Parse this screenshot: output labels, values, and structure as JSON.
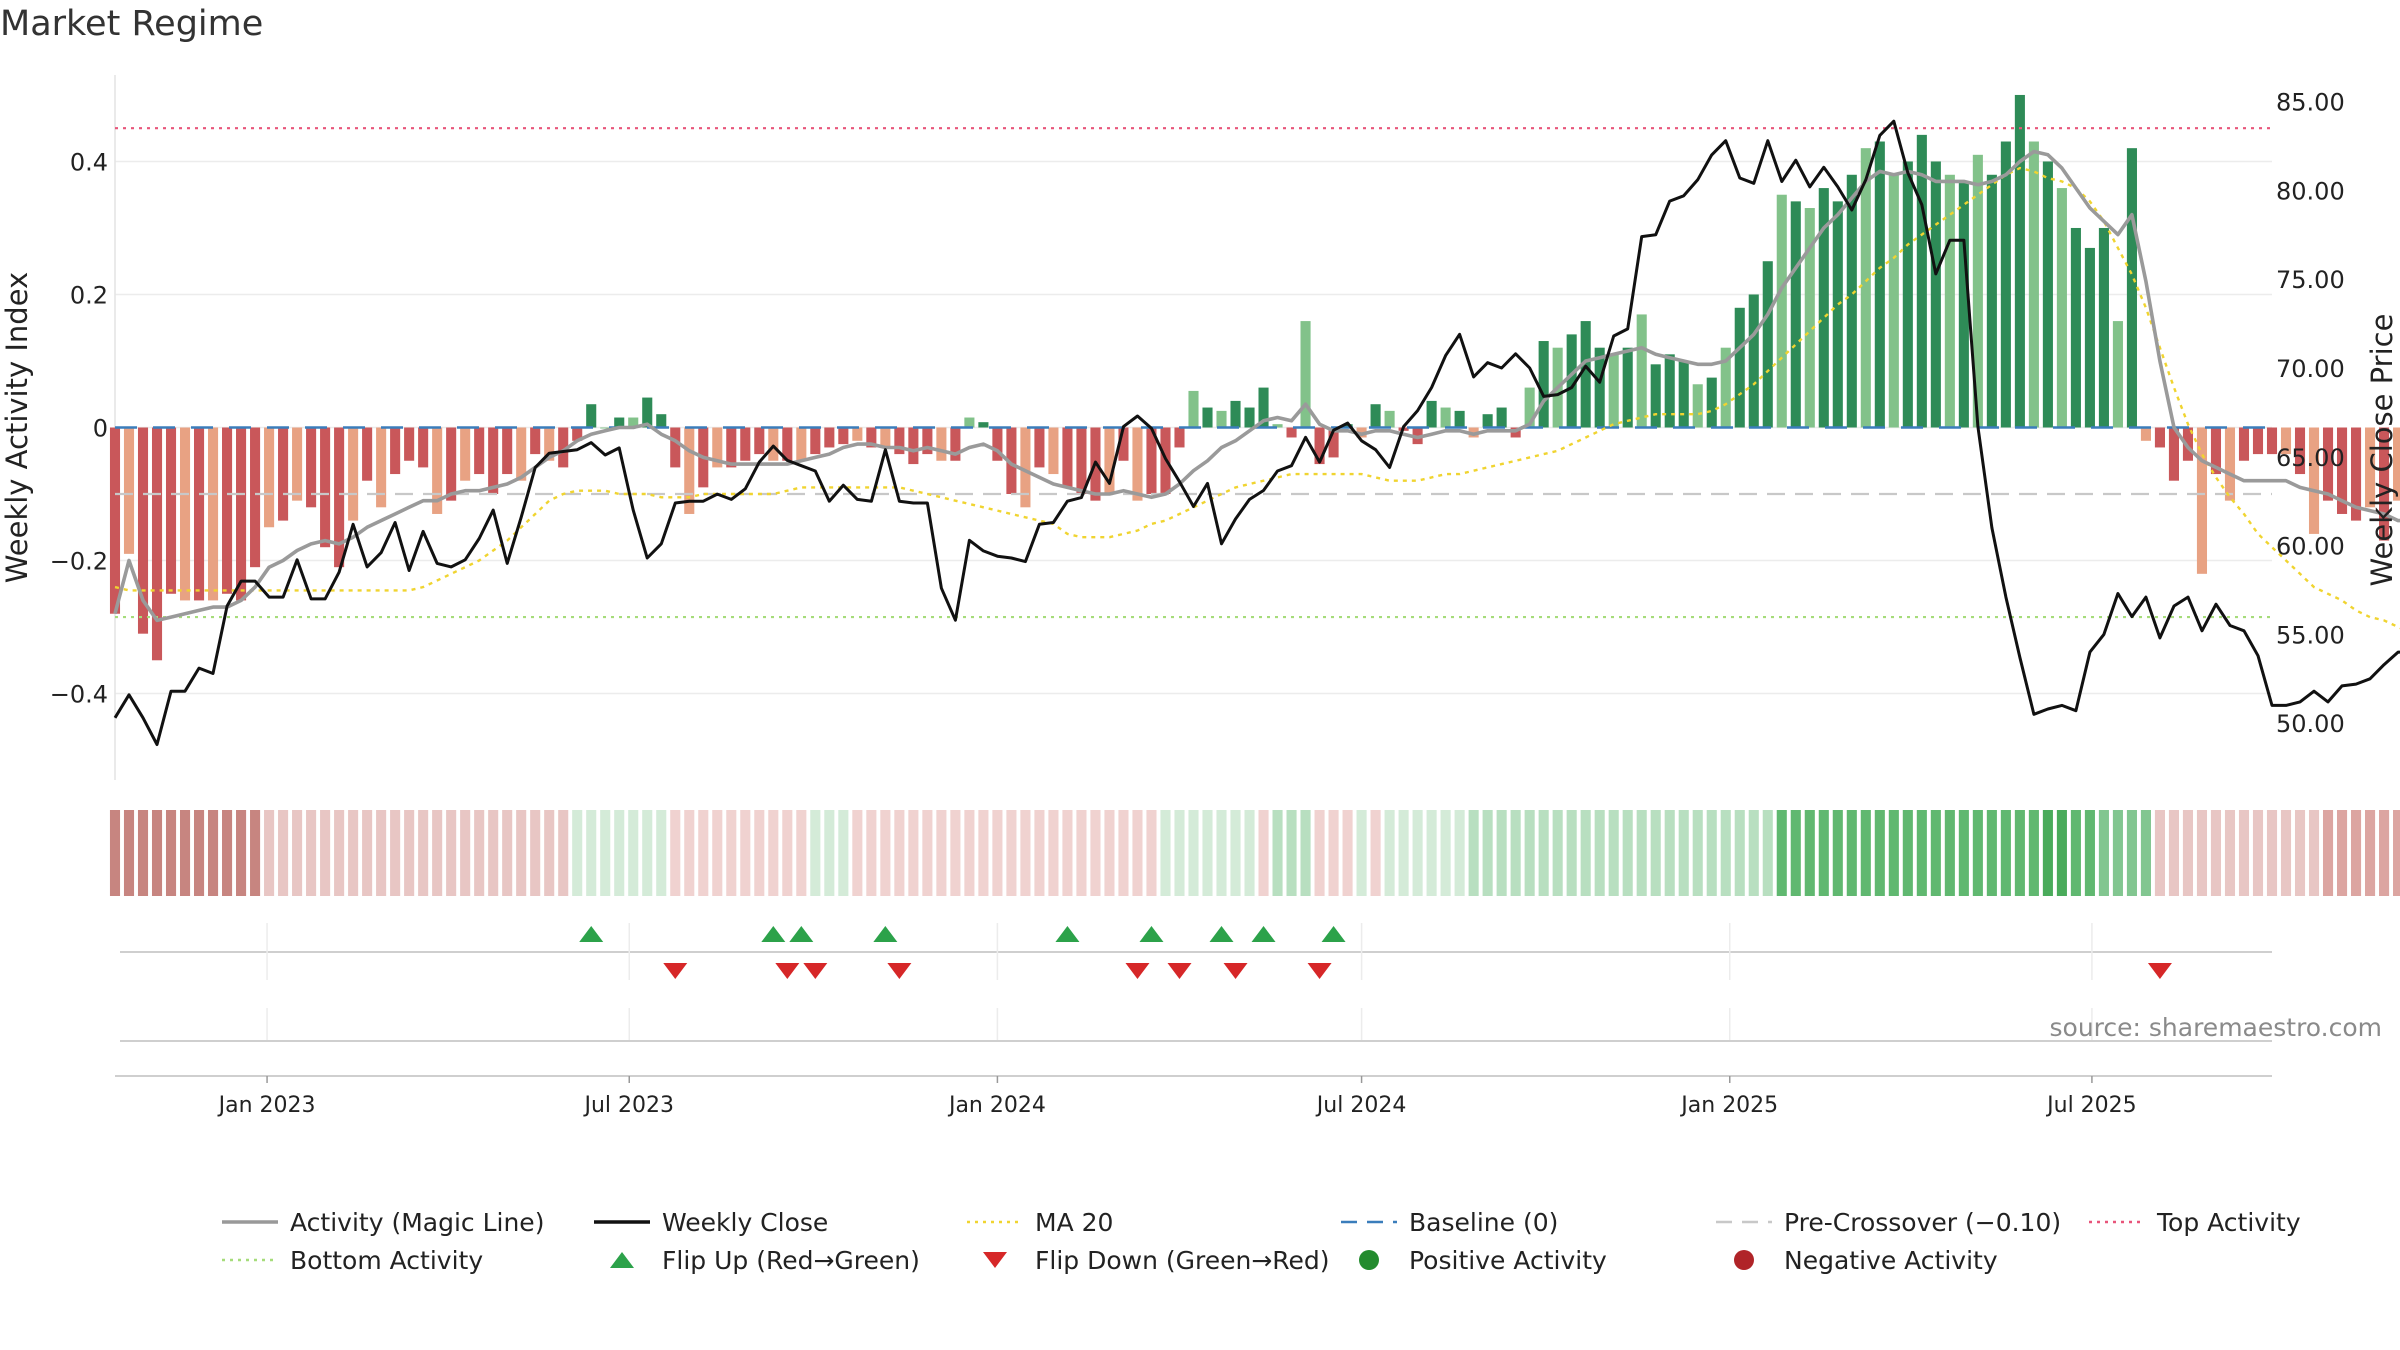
{
  "page": {
    "title": "Market Regime",
    "source": "source: sharemaestro.com"
  },
  "legend": [
    {
      "key": "magic",
      "label": "Activity (Magic Line)",
      "color": "#999999",
      "kind": "line"
    },
    {
      "key": "close",
      "label": "Weekly Close",
      "color": "#111111",
      "kind": "line"
    },
    {
      "key": "ma20",
      "label": "MA 20",
      "color": "#f0d430",
      "kind": "dotted"
    },
    {
      "key": "baseline",
      "label": "Baseline (0)",
      "color": "#3a7dbb",
      "kind": "dashed"
    },
    {
      "key": "precross",
      "label": "Pre-Crossover (−0.10)",
      "color": "#c8c8c8",
      "kind": "dashed"
    },
    {
      "key": "top",
      "label": "Top Activity",
      "color": "#e8557a",
      "kind": "dotted"
    },
    {
      "key": "bottom",
      "label": "Bottom Activity",
      "color": "#a6dc7a",
      "kind": "dotted"
    },
    {
      "key": "flipup",
      "label": "Flip Up (Red→Green)",
      "color": "#2ca24a",
      "kind": "triangle-up"
    },
    {
      "key": "flipdown",
      "label": "Flip Down (Green→Red)",
      "color": "#d62728",
      "kind": "triangle-down"
    },
    {
      "key": "pos",
      "label": "Positive Activity",
      "color": "#238b2e",
      "kind": "circle"
    },
    {
      "key": "neg",
      "label": "Negative Activity",
      "color": "#b02428",
      "kind": "circle"
    }
  ],
  "chart_data": {
    "type": "bar",
    "title": "Market Regime",
    "ylabel_left": "Weekly Activity Index",
    "ylabel_right": "Weekly Close Price",
    "ylim_left": [
      -0.53,
      0.53
    ],
    "ylim_right": [
      46.8,
      86.5
    ],
    "left_ticks": [
      {
        "v": 0.4,
        "label": "0.4"
      },
      {
        "v": 0.2,
        "label": "0.2"
      },
      {
        "v": 0,
        "label": "0"
      },
      {
        "v": -0.2,
        "label": "−0.2"
      },
      {
        "v": -0.4,
        "label": "−0.4"
      }
    ],
    "right_ticks": [
      {
        "v": 85,
        "label": "85.00"
      },
      {
        "v": 80,
        "label": "80.00"
      },
      {
        "v": 75,
        "label": "75.00"
      },
      {
        "v": 70,
        "label": "70.00"
      },
      {
        "v": 65,
        "label": "65.00"
      },
      {
        "v": 60,
        "label": "60.00"
      },
      {
        "v": 55,
        "label": "55.00"
      },
      {
        "v": 50,
        "label": "50.00"
      }
    ],
    "x_range": [
      "2022-10-17",
      "2025-09-29"
    ],
    "x_ticks": [
      {
        "date": "2023-01-01",
        "label": "Jan 2023"
      },
      {
        "date": "2023-07-01",
        "label": "Jul 2023"
      },
      {
        "date": "2024-01-01",
        "label": "Jan 2024"
      },
      {
        "date": "2024-07-01",
        "label": "Jul 2024"
      },
      {
        "date": "2025-01-01",
        "label": "Jan 2025"
      },
      {
        "date": "2025-07-01",
        "label": "Jul 2025"
      }
    ],
    "first_week": "2022-10-17",
    "baseline": 0,
    "pre_crossover": -0.1,
    "top_activity": 0.45,
    "bottom_activity": -0.285,
    "activity": [
      -0.28,
      -0.19,
      -0.31,
      -0.35,
      -0.25,
      -0.26,
      -0.26,
      -0.26,
      -0.25,
      -0.26,
      -0.21,
      -0.15,
      -0.14,
      -0.11,
      -0.12,
      -0.18,
      -0.21,
      -0.14,
      -0.08,
      -0.12,
      -0.07,
      -0.05,
      -0.06,
      -0.13,
      -0.11,
      -0.08,
      -0.07,
      -0.1,
      -0.07,
      -0.08,
      -0.04,
      -0.05,
      -0.06,
      -0.02,
      0.035,
      0.0,
      0.015,
      0.015,
      0.045,
      0.02,
      -0.06,
      -0.13,
      -0.09,
      -0.06,
      -0.06,
      -0.05,
      -0.04,
      -0.05,
      -0.05,
      -0.05,
      -0.04,
      -0.03,
      -0.025,
      -0.02,
      -0.03,
      -0.03,
      -0.04,
      -0.055,
      -0.04,
      -0.05,
      -0.05,
      0.015,
      0.008,
      -0.05,
      -0.1,
      -0.12,
      -0.06,
      -0.07,
      -0.09,
      -0.1,
      -0.11,
      -0.1,
      -0.05,
      -0.11,
      -0.1,
      -0.1,
      -0.03,
      0.055,
      0.03,
      0.025,
      0.04,
      0.03,
      0.06,
      0.005,
      -0.015,
      0.16,
      -0.055,
      -0.045,
      0.005,
      -0.015,
      0.035,
      0.025,
      -0.005,
      -0.025,
      0.04,
      0.03,
      0.025,
      -0.015,
      0.02,
      0.03,
      -0.015,
      0.06,
      0.13,
      0.12,
      0.14,
      0.16,
      0.12,
      0.11,
      0.12,
      0.17,
      0.095,
      0.11,
      0.1,
      0.065,
      0.075,
      0.12,
      0.18,
      0.2,
      0.25,
      0.35,
      0.34,
      0.33,
      0.36,
      0.34,
      0.38,
      0.42,
      0.43,
      0.38,
      0.4,
      0.44,
      0.4,
      0.38,
      0.37,
      0.41,
      0.38,
      0.43,
      0.5,
      0.43,
      0.4,
      0.36,
      0.3,
      0.27,
      0.3,
      0.16,
      0.42,
      -0.02,
      -0.03,
      -0.08,
      -0.05,
      -0.22,
      -0.07,
      -0.11,
      -0.05,
      -0.04,
      -0.04,
      -0.04,
      -0.07,
      -0.16,
      -0.11,
      -0.13,
      -0.14,
      -0.12,
      -0.17,
      -0.11,
      -0.15,
      -0.16,
      -0.17,
      -0.2,
      -0.2,
      -0.2,
      -0.12,
      -0.2,
      -0.23,
      -0.16,
      -0.19,
      -0.18,
      -0.28,
      -0.24,
      -0.2,
      -0.24,
      -0.18,
      -0.28,
      -0.3,
      -0.22
    ],
    "weekly_close": [
      50.3,
      51.6,
      50.3,
      48.8,
      51.8,
      51.8,
      53.1,
      52.8,
      56.6,
      58.0,
      58.0,
      57.1,
      57.1,
      59.2,
      57.0,
      57.0,
      58.5,
      61.2,
      58.8,
      59.6,
      61.3,
      58.6,
      60.8,
      59.0,
      58.8,
      59.2,
      60.4,
      62.0,
      59.0,
      61.6,
      64.4,
      65.2,
      65.3,
      65.4,
      65.8,
      65.1,
      65.5,
      62.0,
      59.3,
      60.1,
      62.4,
      62.5,
      62.5,
      62.9,
      62.6,
      63.2,
      64.7,
      65.6,
      64.8,
      64.5,
      64.2,
      62.5,
      63.4,
      62.6,
      62.5,
      65.4,
      62.5,
      62.4,
      62.4,
      57.6,
      55.8,
      60.3,
      59.7,
      59.4,
      59.3,
      59.1,
      61.2,
      61.3,
      62.5,
      62.7,
      64.7,
      63.5,
      66.7,
      67.3,
      66.6,
      64.9,
      63.6,
      62.2,
      63.5,
      60.1,
      61.5,
      62.6,
      63.1,
      64.2,
      64.5,
      66.1,
      64.7,
      66.5,
      66.9,
      65.9,
      65.4,
      64.4,
      66.7,
      67.6,
      68.9,
      70.7,
      71.9,
      69.5,
      70.3,
      70.0,
      70.8,
      70.0,
      68.4,
      68.5,
      68.9,
      70.1,
      69.2,
      71.8,
      72.2,
      77.4,
      77.5,
      79.4,
      79.7,
      80.6,
      82.0,
      82.8,
      80.7,
      80.4,
      82.8,
      80.5,
      81.7,
      80.2,
      81.3,
      80.2,
      78.9,
      80.6,
      83.1,
      83.9,
      81.0,
      79.2,
      75.3,
      77.2,
      77.2,
      66.7,
      61.0,
      57.1,
      53.7,
      50.5,
      50.8,
      51.0,
      50.7,
      54.0,
      55.0,
      57.3,
      56.0,
      57.1,
      54.8,
      56.6,
      57.1,
      55.2,
      56.7,
      55.5,
      55.2,
      53.8,
      51.0,
      51.0,
      51.2,
      51.8,
      51.2,
      52.1,
      52.2,
      52.5,
      53.3,
      54.0,
      54.0,
      55.2,
      55.0,
      56.2,
      55.2,
      56.5,
      55.5
    ],
    "magic_line": [
      -0.28,
      -0.2,
      -0.26,
      -0.29,
      -0.285,
      -0.28,
      -0.275,
      -0.27,
      -0.27,
      -0.26,
      -0.24,
      -0.21,
      -0.2,
      -0.185,
      -0.175,
      -0.17,
      -0.175,
      -0.165,
      -0.15,
      -0.14,
      -0.13,
      -0.12,
      -0.11,
      -0.11,
      -0.1,
      -0.095,
      -0.095,
      -0.09,
      -0.085,
      -0.075,
      -0.06,
      -0.045,
      -0.035,
      -0.02,
      -0.01,
      -0.005,
      0.0,
      0.0,
      0.005,
      -0.01,
      -0.02,
      -0.035,
      -0.045,
      -0.05,
      -0.055,
      -0.055,
      -0.055,
      -0.055,
      -0.055,
      -0.05,
      -0.045,
      -0.04,
      -0.03,
      -0.025,
      -0.025,
      -0.03,
      -0.03,
      -0.035,
      -0.03,
      -0.035,
      -0.04,
      -0.03,
      -0.025,
      -0.035,
      -0.055,
      -0.065,
      -0.075,
      -0.085,
      -0.09,
      -0.095,
      -0.1,
      -0.1,
      -0.095,
      -0.1,
      -0.105,
      -0.1,
      -0.085,
      -0.065,
      -0.05,
      -0.03,
      -0.02,
      -0.005,
      0.01,
      0.015,
      0.01,
      0.035,
      0.005,
      -0.005,
      -0.005,
      -0.01,
      -0.005,
      -0.005,
      -0.01,
      -0.015,
      -0.01,
      -0.005,
      -0.005,
      -0.01,
      -0.005,
      -0.005,
      -0.005,
      0.005,
      0.04,
      0.06,
      0.08,
      0.1,
      0.105,
      0.11,
      0.115,
      0.12,
      0.11,
      0.105,
      0.1,
      0.095,
      0.095,
      0.1,
      0.12,
      0.14,
      0.17,
      0.21,
      0.24,
      0.27,
      0.3,
      0.32,
      0.345,
      0.37,
      0.385,
      0.38,
      0.385,
      0.38,
      0.37,
      0.37,
      0.37,
      0.365,
      0.37,
      0.38,
      0.4,
      0.415,
      0.41,
      0.39,
      0.36,
      0.33,
      0.31,
      0.29,
      0.32,
      0.22,
      0.1,
      0.0,
      -0.03,
      -0.05,
      -0.06,
      -0.07,
      -0.08,
      -0.08,
      -0.08,
      -0.08,
      -0.09,
      -0.095,
      -0.1,
      -0.11,
      -0.12,
      -0.125,
      -0.13,
      -0.14,
      -0.14,
      -0.145,
      -0.15,
      -0.155,
      -0.16,
      -0.165,
      -0.17,
      -0.175,
      -0.18,
      -0.185,
      -0.19,
      -0.195,
      -0.2,
      -0.205,
      -0.215,
      -0.22,
      -0.225,
      -0.23,
      -0.235,
      -0.23
    ],
    "ma20": [
      -0.24,
      -0.245,
      -0.245,
      -0.245,
      -0.245,
      -0.245,
      -0.245,
      -0.245,
      -0.245,
      -0.245,
      -0.245,
      -0.245,
      -0.245,
      -0.245,
      -0.245,
      -0.245,
      -0.245,
      -0.245,
      -0.245,
      -0.245,
      -0.245,
      -0.245,
      -0.24,
      -0.23,
      -0.22,
      -0.21,
      -0.2,
      -0.185,
      -0.17,
      -0.15,
      -0.13,
      -0.11,
      -0.1,
      -0.095,
      -0.095,
      -0.095,
      -0.1,
      -0.1,
      -0.1,
      -0.105,
      -0.105,
      -0.105,
      -0.1,
      -0.1,
      -0.1,
      -0.1,
      -0.1,
      -0.1,
      -0.095,
      -0.09,
      -0.09,
      -0.09,
      -0.09,
      -0.09,
      -0.09,
      -0.09,
      -0.09,
      -0.095,
      -0.1,
      -0.105,
      -0.11,
      -0.115,
      -0.12,
      -0.125,
      -0.13,
      -0.135,
      -0.14,
      -0.145,
      -0.16,
      -0.165,
      -0.165,
      -0.165,
      -0.16,
      -0.155,
      -0.145,
      -0.14,
      -0.13,
      -0.12,
      -0.11,
      -0.1,
      -0.09,
      -0.085,
      -0.08,
      -0.075,
      -0.07,
      -0.07,
      -0.07,
      -0.07,
      -0.07,
      -0.07,
      -0.075,
      -0.08,
      -0.08,
      -0.08,
      -0.075,
      -0.07,
      -0.07,
      -0.065,
      -0.06,
      -0.055,
      -0.05,
      -0.045,
      -0.04,
      -0.035,
      -0.025,
      -0.015,
      -0.005,
      0.005,
      0.01,
      0.015,
      0.02,
      0.02,
      0.02,
      0.02,
      0.025,
      0.035,
      0.05,
      0.065,
      0.085,
      0.105,
      0.125,
      0.145,
      0.165,
      0.185,
      0.2,
      0.22,
      0.24,
      0.255,
      0.275,
      0.29,
      0.305,
      0.32,
      0.335,
      0.35,
      0.365,
      0.38,
      0.39,
      0.385,
      0.375,
      0.37,
      0.36,
      0.34,
      0.31,
      0.27,
      0.23,
      0.18,
      0.12,
      0.06,
      0.005,
      -0.04,
      -0.075,
      -0.105,
      -0.13,
      -0.16,
      -0.18,
      -0.2,
      -0.22,
      -0.24,
      -0.25,
      -0.26,
      -0.275,
      -0.285,
      -0.29,
      -0.3,
      -0.31,
      -0.32,
      -0.33,
      -0.335,
      -0.34,
      -0.345,
      -0.345,
      -0.34,
      -0.335,
      -0.33,
      -0.32,
      -0.31,
      -0.3
    ],
    "regime_colors": [
      "#c78580",
      "#c78580",
      "#c78580",
      "#c78580",
      "#c78580",
      "#c78580",
      "#c78580",
      "#c78580",
      "#c78580",
      "#c78580",
      "#c78580",
      "#e8c6c4",
      "#e8c6c4",
      "#e8c6c4",
      "#e8c6c4",
      "#e8c6c4",
      "#e8c6c4",
      "#e8c6c4",
      "#e8c6c4",
      "#e8c6c4",
      "#e8c6c4",
      "#e8c6c4",
      "#e8c6c4",
      "#e8c6c4",
      "#e8c6c4",
      "#e8c6c4",
      "#e8c6c4",
      "#e8c6c4",
      "#e8c6c4",
      "#e8c6c4",
      "#e8c6c4",
      "#e8c6c4",
      "#e8c6c4",
      "#d4ebd8",
      "#d4ebd8",
      "#d4ebd8",
      "#d4ebd8",
      "#d4ebd8",
      "#d4ebd8",
      "#d4ebd8",
      "#f0d2d0",
      "#f0d2d0",
      "#f0d2d0",
      "#f0d2d0",
      "#f0d2d0",
      "#f0d2d0",
      "#f0d2d0",
      "#f0d2d0",
      "#f0d2d0",
      "#f0d2d0",
      "#d4ebd8",
      "#d4ebd8",
      "#d4ebd8",
      "#f0d2d0",
      "#f0d2d0",
      "#f0d2d0",
      "#f0d2d0",
      "#f0d2d0",
      "#f0d2d0",
      "#f0d2d0",
      "#f0d2d0",
      "#f0d2d0",
      "#f0d2d0",
      "#f0d2d0",
      "#f0d2d0",
      "#f0d2d0",
      "#f0d2d0",
      "#f0d2d0",
      "#f0d2d0",
      "#f0d2d0",
      "#f0d2d0",
      "#f0d2d0",
      "#f0d2d0",
      "#f0d2d0",
      "#f0d2d0",
      "#d4ebd8",
      "#d4ebd8",
      "#d4ebd8",
      "#d4ebd8",
      "#d4ebd8",
      "#d4ebd8",
      "#d4ebd8",
      "#f0d2d0",
      "#b8dfc0",
      "#b8dfc0",
      "#b8dfc0",
      "#f0d2d0",
      "#f0d2d0",
      "#f0d2d0",
      "#d4ebd8",
      "#f0d2d0",
      "#d4ebd8",
      "#d4ebd8",
      "#d4ebd8",
      "#d4ebd8",
      "#d4ebd8",
      "#d4ebd8",
      "#b8dfc0",
      "#b8dfc0",
      "#b8dfc0",
      "#b8dfc0",
      "#b8dfc0",
      "#b8dfc0",
      "#b8dfc0",
      "#b8dfc0",
      "#b8dfc0",
      "#b8dfc0",
      "#b8dfc0",
      "#b8dfc0",
      "#b8dfc0",
      "#b8dfc0",
      "#b8dfc0",
      "#b8dfc0",
      "#b8dfc0",
      "#b8dfc0",
      "#b8dfc0",
      "#b8dfc0",
      "#b8dfc0",
      "#b8dfc0",
      "#60b870",
      "#60b870",
      "#60b870",
      "#60b870",
      "#60b870",
      "#60b870",
      "#60b870",
      "#60b870",
      "#60b870",
      "#60b870",
      "#60b870",
      "#60b870",
      "#60b870",
      "#60b870",
      "#60b870",
      "#60b870",
      "#60b870",
      "#60b870",
      "#60b870",
      "#4aab5b",
      "#4aab5b",
      "#60b870",
      "#60b870",
      "#82c690",
      "#82c690",
      "#82c690",
      "#82c690",
      "#e8c6c4",
      "#e8c6c4",
      "#e8c6c4",
      "#e8c6c4",
      "#e8c6c4",
      "#e8c6c4",
      "#e8c6c4",
      "#e8c6c4",
      "#e8c6c4",
      "#e8c6c4",
      "#e8c6c4",
      "#e8c6c4",
      "#dca5a1",
      "#dca5a1",
      "#dca5a1",
      "#dca5a1",
      "#dca5a1",
      "#dca5a1",
      "#dca5a1",
      "#dca5a1",
      "#dca5a1",
      "#dca5a1",
      "#dca5a1",
      "#dca5a1",
      "#dca5a1",
      "#dca5a1",
      "#dca5a1",
      "#dca5a1",
      "#dca5a1",
      "#dca5a1",
      "#c78580",
      "#c78580",
      "#c78580",
      "#c78580",
      "#c78580",
      "#c78580",
      "#c78580",
      "#c78580"
    ],
    "flip_up_weeks": [
      34,
      47,
      49,
      55,
      68,
      74,
      79,
      82,
      87
    ],
    "flip_down_weeks": [
      40,
      48,
      50,
      56,
      73,
      76,
      80,
      86,
      146
    ]
  }
}
